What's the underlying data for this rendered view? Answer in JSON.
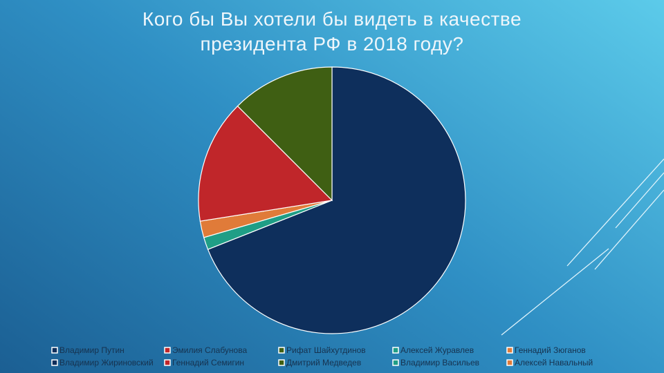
{
  "chart_data": {
    "type": "pie",
    "title": "Кого бы Вы хотели бы видеть в качестве президента РФ в 2018 году?",
    "categories": [
      "Владимир Путин",
      "Эмилия Слабунова",
      "Рифат Шайхутдинов",
      "Алексей Журавлев",
      "Геннадий Зюганов",
      "Владимир Жириновский",
      "Геннадий Семигин",
      "Дмитрий Медведев",
      "Владимир Васильев",
      "Алексей Навальный"
    ],
    "values": [
      69,
      15,
      12.5,
      1.5,
      2,
      0,
      0,
      0,
      0,
      0
    ],
    "colors": [
      "#0e2f5c",
      "#c0262a",
      "#3f5f13",
      "#1f9e86",
      "#e07b39",
      "#0e2f5c",
      "#c0262a",
      "#3f5f13",
      "#1f9e86",
      "#e07b39"
    ],
    "legend": "bottom"
  }
}
